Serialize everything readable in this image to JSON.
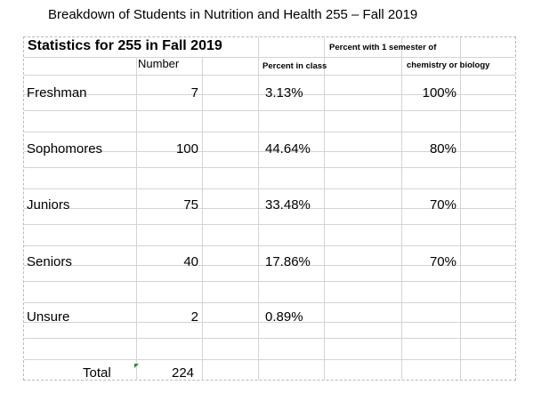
{
  "caption": "Breakdown of Students in Nutrition and Health 255 – Fall 2019",
  "sheet": {
    "title": "Statistics for 255 in Fall 2019",
    "header_note_line1": "Percent with 1 semester of",
    "header_note_line2": "chemistry or biology",
    "col_number": "Number",
    "col_percent": "Percent in class"
  },
  "rows": [
    {
      "label": "Freshman",
      "number": "7",
      "percent": "3.13%",
      "chem_bio": "100%"
    },
    {
      "label": "Sophomores",
      "number": "100",
      "percent": "44.64%",
      "chem_bio": "80%"
    },
    {
      "label": "Juniors",
      "number": "75",
      "percent": "33.48%",
      "chem_bio": "70%"
    },
    {
      "label": "Seniors",
      "number": "40",
      "percent": "17.86%",
      "chem_bio": "70%"
    },
    {
      "label": "Unsure",
      "number": "2",
      "percent": "0.89%",
      "chem_bio": ""
    }
  ],
  "total": {
    "label": "Total",
    "number": "224"
  }
}
